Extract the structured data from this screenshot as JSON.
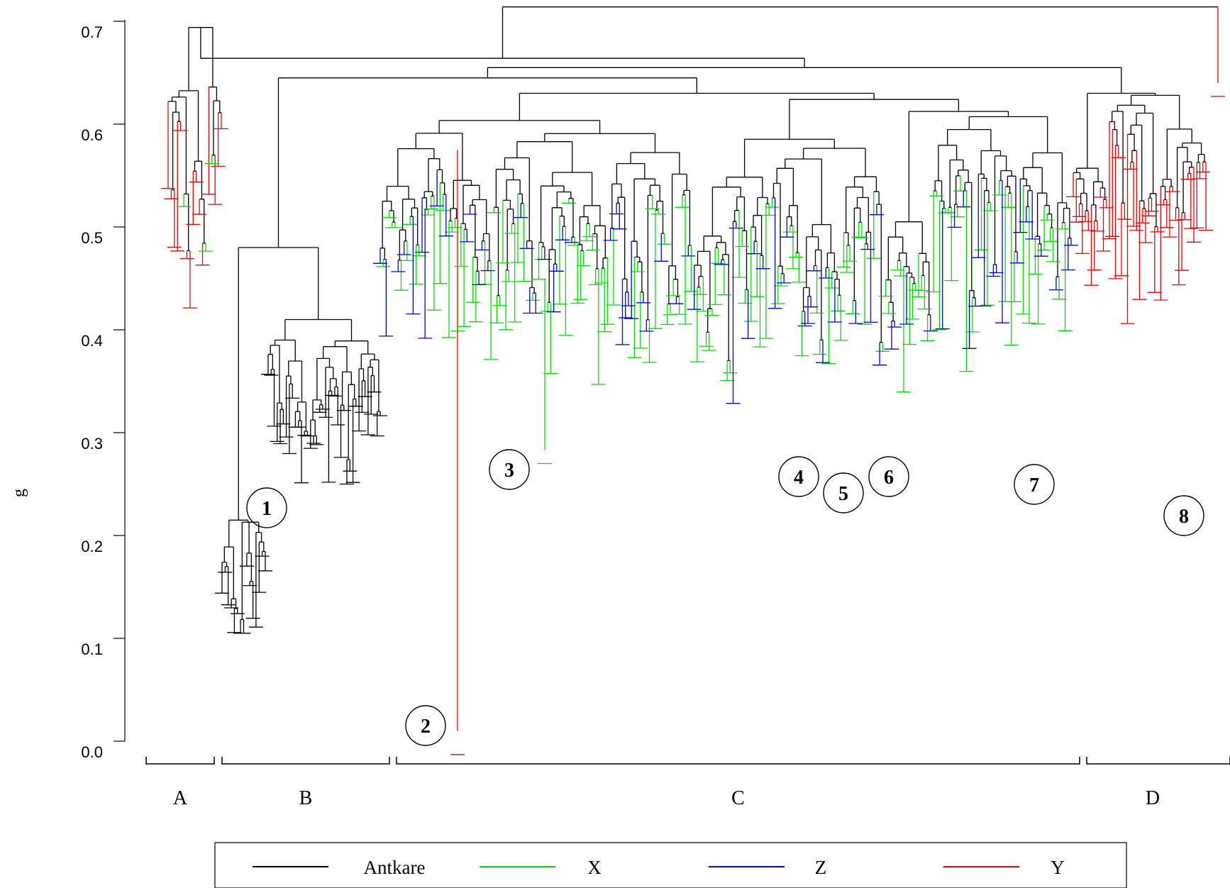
{
  "chart_data": {
    "type": "dendrogram",
    "ylabel": "g",
    "ylim": [
      0.0,
      0.7
    ],
    "yticks": [
      "0.0",
      "0.1",
      "0.2",
      "0.3",
      "0.4",
      "0.5",
      "0.6",
      "0.7"
    ],
    "grid": false,
    "colors": {
      "Antkare": "#000000",
      "X": "#00e000",
      "Z": "#0000dd",
      "Y": "#ee0000"
    },
    "legend": {
      "placement": "bottom",
      "entries": [
        {
          "name": "Antkare",
          "color": "#000000"
        },
        {
          "name": "X",
          "color": "#00e000"
        },
        {
          "name": "Z",
          "color": "#0000dd"
        },
        {
          "name": "Y",
          "color": "#ee0000"
        }
      ]
    },
    "groups": [
      {
        "label": "A"
      },
      {
        "label": "B"
      },
      {
        "label": "C"
      },
      {
        "label": "D"
      }
    ],
    "callouts": [
      "1",
      "2",
      "3",
      "4",
      "5",
      "6",
      "7",
      "8"
    ],
    "clusters": [
      {
        "id": "A",
        "root_height": 0.694,
        "leaf_low": 0.34,
        "leaf_high": 0.66,
        "color_mix": [
          "Y",
          "Y",
          "Y",
          "X"
        ]
      },
      {
        "id": "B1",
        "root_height": 0.41,
        "leaf_low": 0.25,
        "leaf_high": 0.38,
        "color_mix": [
          "Antkare"
        ]
      },
      {
        "id": "B2",
        "root_height": 0.215,
        "leaf_low": 0.105,
        "leaf_high": 0.2,
        "color_mix": [
          "Antkare"
        ]
      },
      {
        "id": "C",
        "root_height": 0.63,
        "leaf_low": 0.29,
        "leaf_high": 0.58,
        "color_mix": [
          "X",
          "X",
          "Z"
        ]
      },
      {
        "id": "D",
        "root_height": 0.63,
        "leaf_low": 0.37,
        "leaf_high": 0.61,
        "color_mix": [
          "Y"
        ]
      }
    ]
  }
}
